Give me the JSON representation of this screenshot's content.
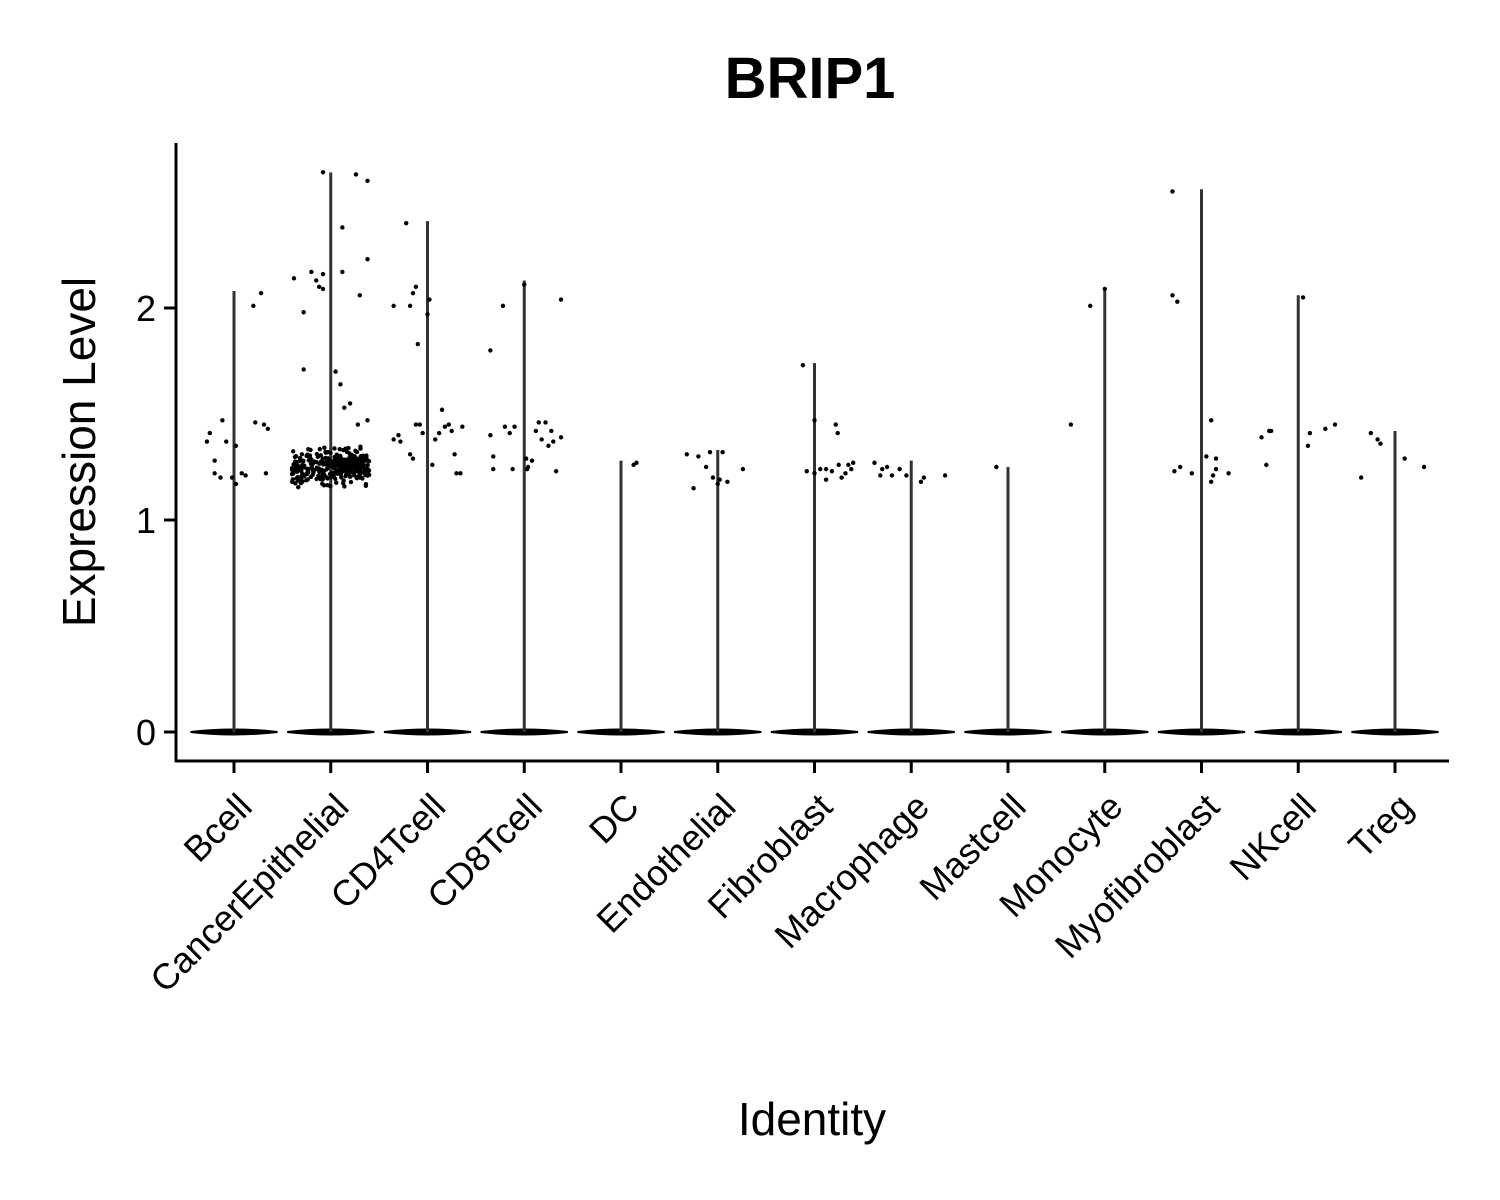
{
  "chart_data": {
    "type": "violin",
    "title": "BRIP1",
    "xlabel": "Identity",
    "ylabel": "Expression Level",
    "ylim": [
      -0.13,
      2.77
    ],
    "yticks": [
      "0",
      "1",
      "2"
    ],
    "yticks_values": [
      0,
      1,
      2
    ],
    "categories": [
      "Bcell",
      "CancerEpithelial",
      "CD4Tcell",
      "CD8Tcell",
      "DC",
      "Endothelial",
      "Fibroblast",
      "Macrophage",
      "Mastcell",
      "Monocyte",
      "Myofibroblast",
      "NKcell",
      "Treg"
    ],
    "violin_max": [
      2.08,
      2.64,
      2.41,
      2.13,
      1.28,
      1.33,
      1.74,
      1.28,
      1.25,
      2.08,
      2.56,
      2.06,
      1.42
    ],
    "points": [
      [
        [
          -0.28,
          1.37
        ],
        [
          -0.25,
          1.41
        ],
        [
          -0.2,
          1.28
        ],
        [
          -0.2,
          1.22
        ],
        [
          -0.14,
          1.2
        ],
        [
          -0.12,
          1.47
        ],
        [
          -0.08,
          1.37
        ],
        [
          -0.02,
          1.2
        ],
        [
          0.02,
          1.35
        ],
        [
          0.02,
          1.17
        ],
        [
          0.08,
          1.22
        ],
        [
          0.12,
          1.21
        ],
        [
          0.2,
          2.01
        ],
        [
          0.22,
          1.46
        ],
        [
          0.28,
          2.07
        ],
        [
          0.31,
          1.45
        ],
        [
          0.33,
          1.22
        ],
        [
          0.35,
          1.43
        ]
      ],
      [
        [
          -0.38,
          2.14
        ],
        [
          -0.2,
          2.17
        ],
        [
          -0.15,
          2.13
        ],
        [
          -0.12,
          2.1
        ],
        [
          -0.08,
          2.16
        ],
        [
          -0.08,
          2.09
        ],
        [
          -0.28,
          1.98
        ],
        [
          -0.28,
          1.71
        ],
        [
          -0.08,
          2.64
        ],
        [
          0.12,
          2.17
        ],
        [
          0.12,
          2.38
        ],
        [
          0.14,
          1.53
        ],
        [
          0.1,
          1.64
        ],
        [
          0.26,
          2.63
        ],
        [
          0.3,
          2.06
        ],
        [
          0.38,
          2.6
        ],
        [
          0.38,
          2.23
        ],
        [
          0.28,
          1.45
        ],
        [
          0.38,
          1.47
        ],
        [
          0.2,
          1.55
        ],
        [
          0.05,
          1.7
        ]
      ],
      [
        [
          -0.35,
          2.01
        ],
        [
          -0.22,
          2.4
        ],
        [
          -0.18,
          2.01
        ],
        [
          -0.15,
          2.07
        ],
        [
          -0.12,
          2.1
        ],
        [
          -0.1,
          1.83
        ],
        [
          0.02,
          2.04
        ],
        [
          0.0,
          1.97
        ],
        [
          -0.35,
          1.38
        ],
        [
          -0.3,
          1.4
        ],
        [
          -0.28,
          1.37
        ],
        [
          -0.18,
          1.31
        ],
        [
          -0.15,
          1.29
        ],
        [
          -0.12,
          1.45
        ],
        [
          -0.08,
          1.45
        ],
        [
          -0.05,
          1.41
        ],
        [
          0.05,
          1.26
        ],
        [
          0.08,
          1.38
        ],
        [
          0.12,
          1.41
        ],
        [
          0.15,
          1.52
        ],
        [
          0.18,
          1.44
        ],
        [
          0.22,
          1.45
        ],
        [
          0.25,
          1.42
        ],
        [
          0.28,
          1.31
        ],
        [
          0.3,
          1.22
        ],
        [
          0.34,
          1.22
        ],
        [
          0.36,
          1.44
        ]
      ],
      [
        [
          -0.35,
          1.4
        ],
        [
          -0.32,
          1.3
        ],
        [
          -0.35,
          1.8
        ],
        [
          -0.22,
          2.01
        ],
        [
          -0.32,
          1.24
        ],
        [
          -0.2,
          1.44
        ],
        [
          -0.15,
          1.41
        ],
        [
          -0.12,
          1.24
        ],
        [
          -0.1,
          1.44
        ],
        [
          0.0,
          2.11
        ],
        [
          0.02,
          1.29
        ],
        [
          0.03,
          1.24
        ],
        [
          0.04,
          1.25
        ],
        [
          0.08,
          1.28
        ],
        [
          0.12,
          1.42
        ],
        [
          0.15,
          1.46
        ],
        [
          0.18,
          1.38
        ],
        [
          0.22,
          1.46
        ],
        [
          0.25,
          1.35
        ],
        [
          0.28,
          1.42
        ],
        [
          0.3,
          1.37
        ],
        [
          0.33,
          1.23
        ],
        [
          0.38,
          1.39
        ],
        [
          0.38,
          2.04
        ]
      ],
      [
        [
          0.13,
          1.26
        ],
        [
          0.16,
          1.27
        ]
      ],
      [
        [
          -0.32,
          1.31
        ],
        [
          -0.2,
          1.3
        ],
        [
          -0.12,
          1.25
        ],
        [
          -0.08,
          1.32
        ],
        [
          -0.05,
          1.2
        ],
        [
          0.0,
          1.17
        ],
        [
          0.02,
          1.19
        ],
        [
          0.05,
          1.32
        ],
        [
          0.1,
          1.18
        ],
        [
          0.26,
          1.24
        ],
        [
          -0.25,
          1.15
        ]
      ],
      [
        [
          -0.12,
          1.73
        ],
        [
          0.0,
          1.47
        ],
        [
          -0.08,
          1.23
        ],
        [
          0.0,
          1.22
        ],
        [
          0.06,
          1.24
        ],
        [
          0.12,
          1.24
        ],
        [
          0.12,
          1.19
        ],
        [
          0.18,
          1.23
        ],
        [
          0.22,
          1.45
        ],
        [
          0.24,
          1.41
        ],
        [
          0.28,
          1.2
        ],
        [
          0.32,
          1.22
        ],
        [
          0.35,
          1.26
        ],
        [
          0.38,
          1.24
        ],
        [
          0.4,
          1.27
        ],
        [
          0.25,
          1.26
        ]
      ],
      [
        [
          -0.38,
          1.27
        ],
        [
          -0.32,
          1.21
        ],
        [
          -0.3,
          1.24
        ],
        [
          -0.25,
          1.25
        ],
        [
          -0.2,
          1.21
        ],
        [
          -0.12,
          1.24
        ],
        [
          -0.05,
          1.21
        ],
        [
          0.1,
          1.18
        ],
        [
          0.13,
          1.2
        ],
        [
          0.35,
          1.21
        ]
      ],
      [
        [
          -0.12,
          1.25
        ]
      ],
      [
        [
          -0.35,
          1.45
        ],
        [
          -0.15,
          2.01
        ],
        [
          0.0,
          2.09
        ]
      ],
      [
        [
          -0.3,
          2.55
        ],
        [
          -0.3,
          2.06
        ],
        [
          -0.25,
          2.03
        ],
        [
          -0.28,
          1.23
        ],
        [
          -0.22,
          1.25
        ],
        [
          -0.1,
          1.22
        ],
        [
          0.05,
          1.3
        ],
        [
          0.1,
          1.47
        ],
        [
          0.1,
          1.18
        ],
        [
          0.12,
          1.21
        ],
        [
          0.15,
          1.24
        ],
        [
          0.15,
          1.29
        ],
        [
          0.28,
          1.22
        ]
      ],
      [
        [
          -0.38,
          1.39
        ],
        [
          -0.33,
          1.26
        ],
        [
          -0.3,
          1.42
        ],
        [
          -0.28,
          1.42
        ],
        [
          0.1,
          1.35
        ],
        [
          0.12,
          1.41
        ],
        [
          0.28,
          1.43
        ],
        [
          0.38,
          1.45
        ],
        [
          0.05,
          2.05
        ]
      ],
      [
        [
          -0.35,
          1.2
        ],
        [
          -0.25,
          1.41
        ],
        [
          -0.18,
          1.38
        ],
        [
          -0.15,
          1.36
        ],
        [
          0.1,
          1.29
        ],
        [
          0.3,
          1.25
        ]
      ]
    ],
    "dense_cluster": {
      "category": "CancerEpithelial",
      "count": 320,
      "y_range": [
        1.14,
        1.36
      ],
      "x_spread": 0.4
    },
    "zero_band": {
      "y": 0
    },
    "grid": false,
    "legend": "none"
  }
}
